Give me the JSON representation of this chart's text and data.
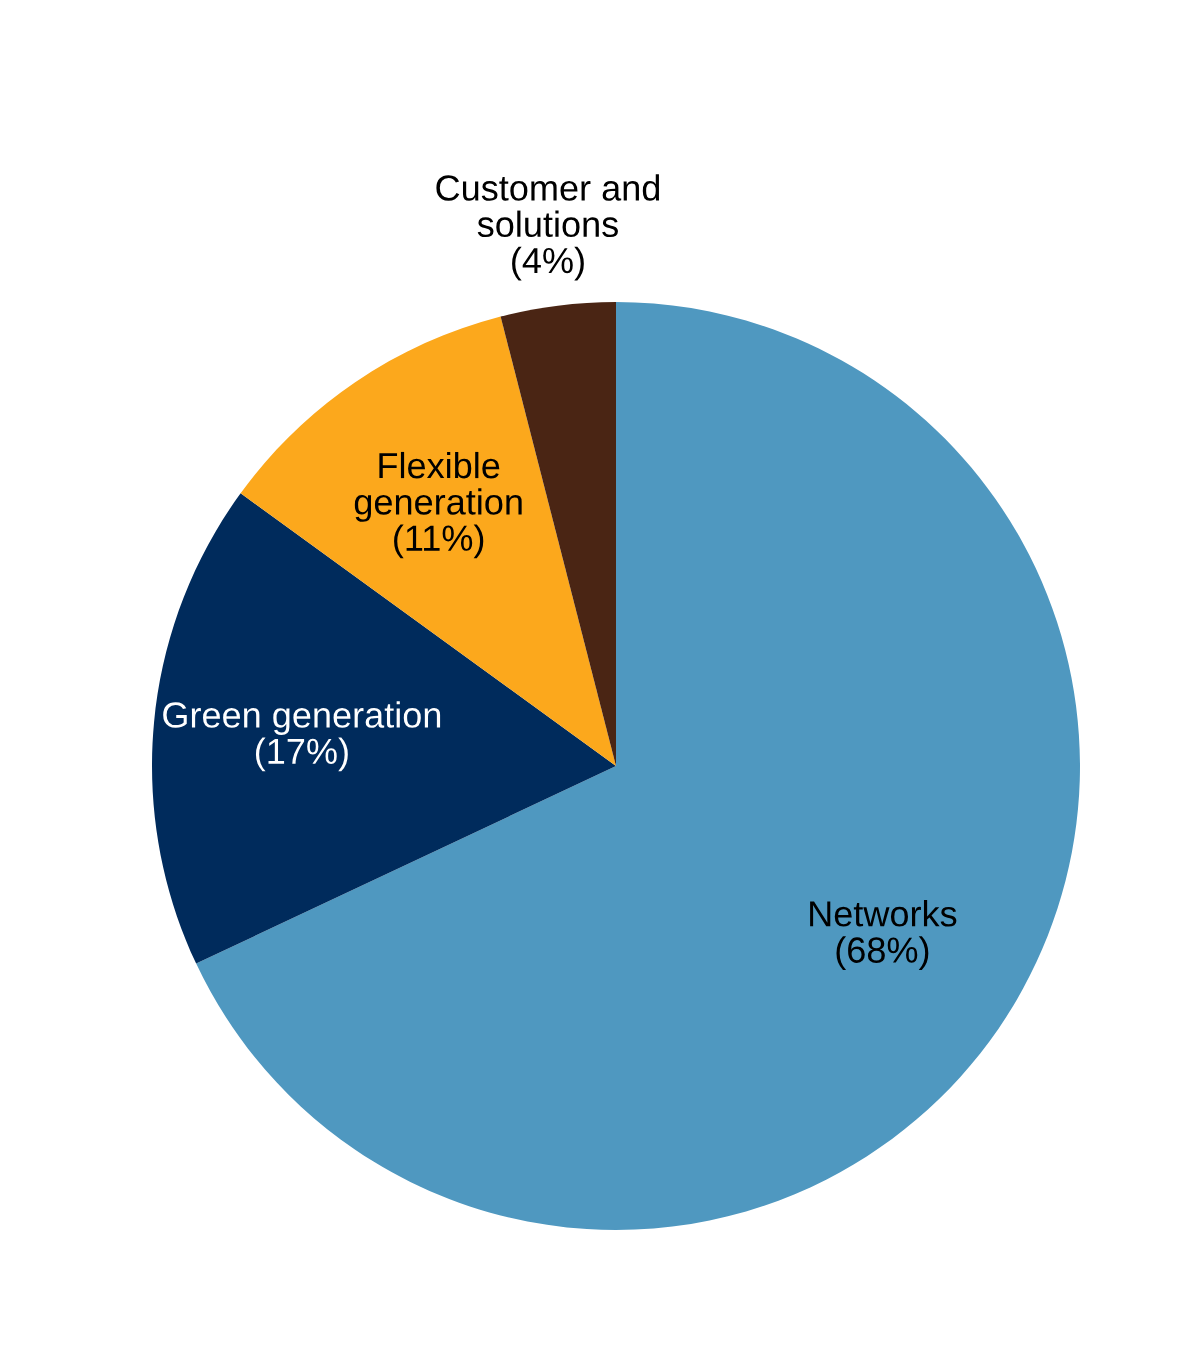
{
  "chart_data": {
    "type": "pie",
    "categories": [
      "Networks",
      "Green generation",
      "Flexible\ngeneration",
      "Customer and\nsolutions"
    ],
    "values": [
      68,
      17,
      11,
      4
    ],
    "value_labels": [
      "(68%)",
      "(17%)",
      "(11%)",
      "(4%)"
    ],
    "colors": [
      "#4f98c0",
      "#002b5c",
      "#fca81c",
      "#4a2514"
    ],
    "legend": false
  }
}
